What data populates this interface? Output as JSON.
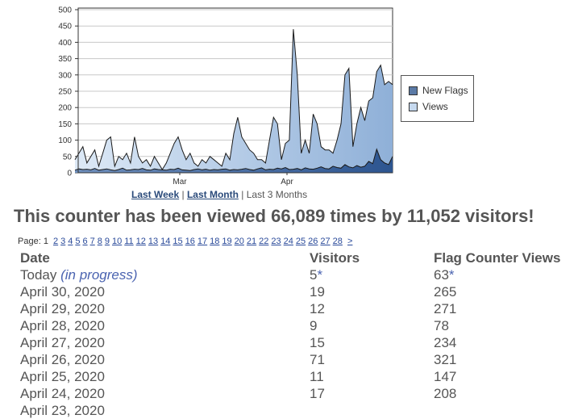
{
  "chart_data": {
    "type": "area",
    "ylim": [
      0,
      500
    ],
    "yticks": [
      "0",
      "50",
      "100",
      "150",
      "200",
      "250",
      "300",
      "350",
      "400",
      "450",
      "500"
    ],
    "x_labels": [
      "Mar",
      "Apr"
    ],
    "legend_position": "right",
    "series": [
      {
        "name": "New Flags",
        "color": "#5b7aa6",
        "values": [
          8,
          12,
          10,
          11,
          9,
          13,
          8,
          10,
          12,
          9,
          7,
          10,
          14,
          8,
          9,
          11,
          10,
          13,
          9,
          8,
          12,
          10,
          9,
          8,
          11,
          10,
          14,
          9,
          8,
          7,
          10,
          12,
          9,
          11,
          8,
          10,
          9,
          11,
          12,
          8,
          10,
          9,
          11,
          13,
          10,
          8,
          12,
          15,
          9,
          11,
          10,
          14,
          12,
          16,
          10,
          11,
          13,
          9,
          15,
          12,
          11,
          14,
          18,
          13,
          12,
          20,
          16,
          14,
          25,
          18,
          15,
          22,
          17,
          20,
          35,
          28,
          72,
          40,
          30,
          25,
          50
        ]
      },
      {
        "name": "Views",
        "color": "#c6d9ef",
        "values": [
          40,
          60,
          80,
          30,
          50,
          70,
          20,
          60,
          100,
          110,
          20,
          50,
          40,
          60,
          30,
          110,
          50,
          30,
          40,
          20,
          50,
          30,
          10,
          30,
          60,
          90,
          110,
          70,
          40,
          60,
          30,
          20,
          40,
          30,
          50,
          40,
          30,
          20,
          60,
          40,
          120,
          170,
          110,
          90,
          70,
          60,
          40,
          40,
          30,
          100,
          170,
          150,
          40,
          90,
          100,
          440,
          300,
          60,
          100,
          60,
          180,
          150,
          80,
          70,
          70,
          60,
          100,
          150,
          300,
          320,
          80,
          150,
          200,
          160,
          220,
          230,
          310,
          330,
          270,
          280,
          270
        ]
      }
    ]
  },
  "legend": {
    "new_flags": "New Flags",
    "views": "Views"
  },
  "range_links": {
    "last_week": "Last Week",
    "sep1": " | ",
    "last_month": "Last Month",
    "sep2": " | ",
    "last_3_months": "Last 3 Months"
  },
  "headline": "This counter has been viewed 66,089 times by 11,052 visitors!",
  "pagination": {
    "label": "Page:",
    "current": "1",
    "pages": [
      "2",
      "3",
      "4",
      "5",
      "6",
      "7",
      "8",
      "9",
      "10",
      "11",
      "12",
      "13",
      "14",
      "15",
      "16",
      "17",
      "18",
      "19",
      "20",
      "21",
      "22",
      "23",
      "24",
      "25",
      "26",
      "27",
      "28"
    ],
    "next": ">"
  },
  "table": {
    "headers": [
      "Date",
      "Visitors",
      "Flag Counter Views"
    ],
    "today": {
      "date": "Today",
      "note": "(in progress)",
      "visitors": "5",
      "views": "63",
      "star": "*"
    },
    "rows": [
      {
        "date": "April 30, 2020",
        "visitors": "19",
        "views": "265"
      },
      {
        "date": "April 29, 2020",
        "visitors": "12",
        "views": "271"
      },
      {
        "date": "April 28, 2020",
        "visitors": "9",
        "views": "78"
      },
      {
        "date": "April 27, 2020",
        "visitors": "15",
        "views": "234"
      },
      {
        "date": "April 26, 2020",
        "visitors": "71",
        "views": "321"
      },
      {
        "date": "April 25, 2020",
        "visitors": "11",
        "views": "147"
      },
      {
        "date": "April 24, 2020",
        "visitors": "17",
        "views": "208"
      },
      {
        "date": "April 23, 2020",
        "visitors": "",
        "views": ""
      }
    ]
  }
}
